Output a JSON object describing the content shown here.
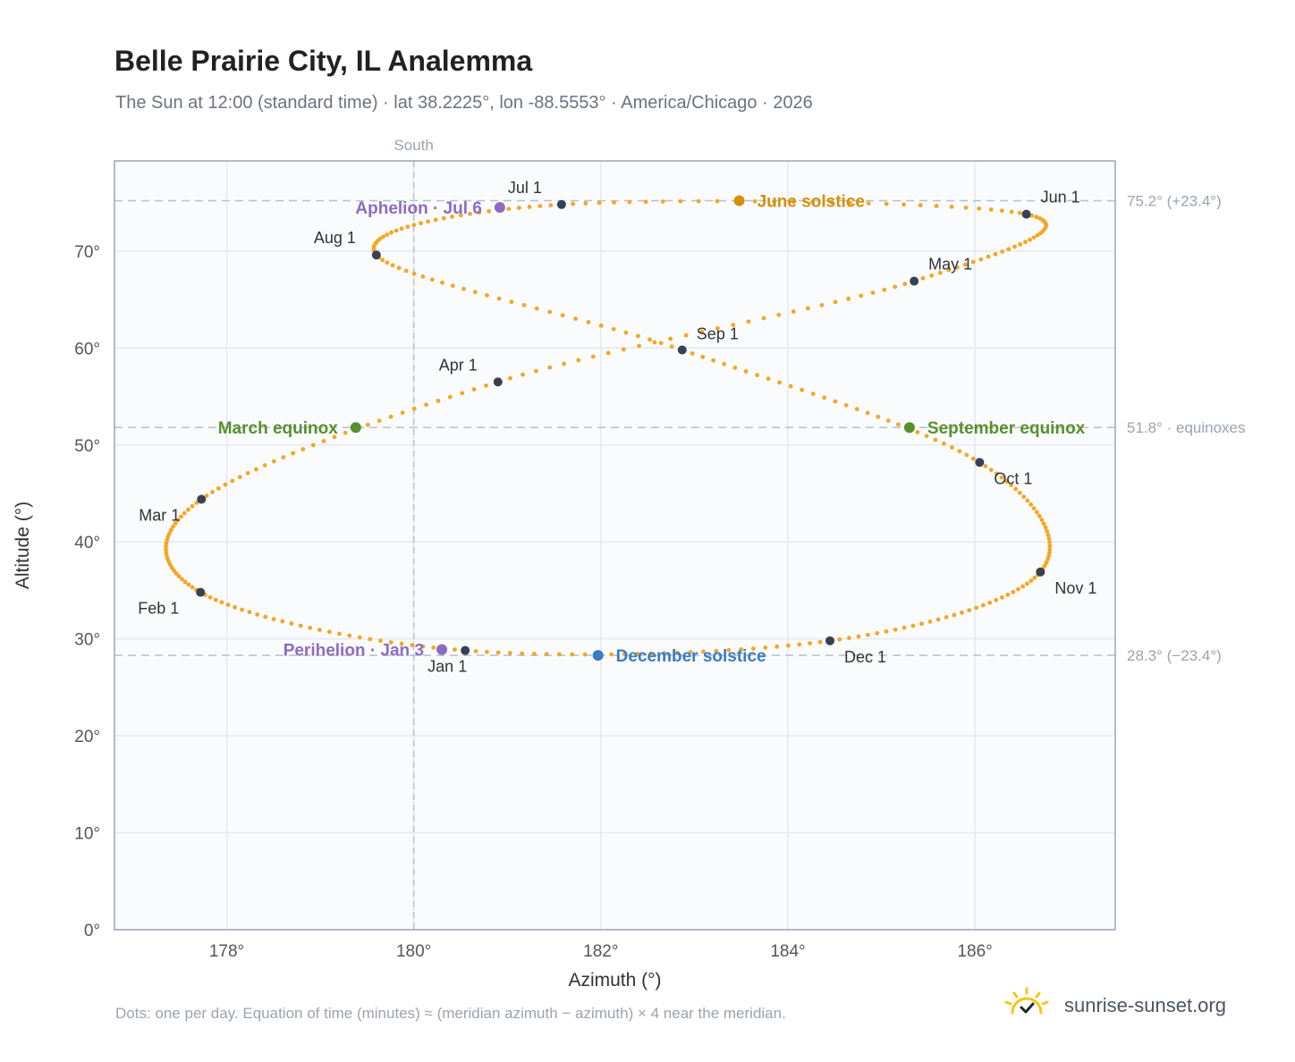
{
  "header": {
    "title": "Belle Prairie City, IL Analemma",
    "subtitle": "The Sun at 12:00 (standard time) · lat 38.2225°, lon -88.5553° · America/Chicago · 2026"
  },
  "footer": {
    "note": "Dots: one per day. Equation of time (minutes) ≈ (meridian azimuth − azimuth) × 4 near the meridian.",
    "brand": "sunrise-sunset.org"
  },
  "colors": {
    "analemma": "#f5a623",
    "month_marker": "#374151",
    "solstice_june": "#d4900a",
    "solstice_december": "#3b7cc4",
    "equinox": "#5a8f2e",
    "apsis": "#8e6bbf",
    "reference_line": "#b8c0cc",
    "grid": "#e5e9ef",
    "plot_background": "#f9fbfd",
    "frame": "#9aa5b4"
  },
  "chart_data": {
    "type": "scatter",
    "xlabel": "Azimuth (°)",
    "ylabel": "Altitude (°)",
    "xlim": [
      176.8,
      187.5
    ],
    "ylim": [
      0,
      79.3
    ],
    "x_ticks": [
      178,
      180,
      182,
      184,
      186
    ],
    "x_tick_labels": [
      "178°",
      "180°",
      "182°",
      "184°",
      "186°"
    ],
    "y_ticks": [
      0,
      10,
      20,
      30,
      40,
      50,
      60,
      70
    ],
    "y_tick_labels": [
      "0°",
      "10°",
      "20°",
      "30°",
      "40°",
      "50°",
      "60°",
      "70°"
    ],
    "grid": true,
    "meridian": {
      "azimuth": 180,
      "label": "South"
    },
    "reference_lines": [
      {
        "altitude": 75.2,
        "label": "75.2° (+23.4°)"
      },
      {
        "altitude": 51.8,
        "label": "51.8° · equinoxes"
      },
      {
        "altitude": 28.3,
        "label": "28.3° (−23.4°)"
      }
    ],
    "month_markers": [
      {
        "label": "Jan 1",
        "az": 180.55,
        "alt": 28.8
      },
      {
        "label": "Feb 1",
        "az": 177.72,
        "alt": 34.8
      },
      {
        "label": "Mar 1",
        "az": 177.73,
        "alt": 44.4
      },
      {
        "label": "Apr 1",
        "az": 180.9,
        "alt": 56.5
      },
      {
        "label": "May 1",
        "az": 185.35,
        "alt": 66.9
      },
      {
        "label": "Jun 1",
        "az": 186.55,
        "alt": 73.8
      },
      {
        "label": "Jul 1",
        "az": 181.58,
        "alt": 74.8
      },
      {
        "label": "Aug 1",
        "az": 179.6,
        "alt": 69.6
      },
      {
        "label": "Sep 1",
        "az": 182.87,
        "alt": 59.8
      },
      {
        "label": "Oct 1",
        "az": 186.05,
        "alt": 48.2
      },
      {
        "label": "Nov 1",
        "az": 186.7,
        "alt": 36.9
      },
      {
        "label": "Dec 1",
        "az": 184.45,
        "alt": 29.8
      }
    ],
    "events": [
      {
        "label": "June solstice",
        "az": 183.48,
        "alt": 75.2,
        "kind": "solstice_june"
      },
      {
        "label": "December solstice",
        "az": 181.97,
        "alt": 28.3,
        "kind": "solstice_december"
      },
      {
        "label": "March equinox",
        "az": 179.38,
        "alt": 51.8,
        "kind": "equinox"
      },
      {
        "label": "September equinox",
        "az": 185.3,
        "alt": 51.8,
        "kind": "equinox"
      },
      {
        "label": "Perihelion · Jan 3",
        "az": 180.3,
        "alt": 28.9,
        "kind": "apsis"
      },
      {
        "label": "Aphelion · Jul 6",
        "az": 180.92,
        "alt": 74.5,
        "kind": "apsis"
      }
    ]
  }
}
